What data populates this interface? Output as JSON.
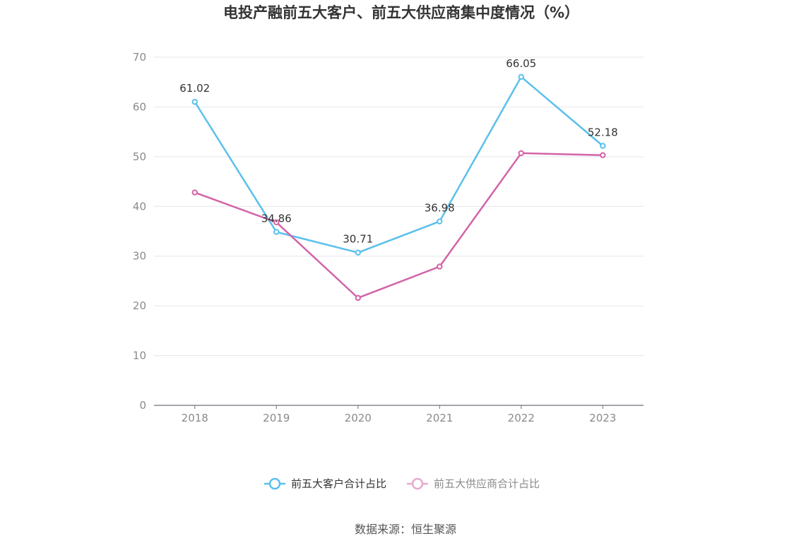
{
  "chart_data": {
    "type": "line",
    "title": "电投产融前五大客户、前五大供应商集中度情况（%）",
    "categories": [
      "2018",
      "2019",
      "2020",
      "2021",
      "2022",
      "2023"
    ],
    "series": [
      {
        "name": "前五大客户合计占比",
        "color": "#5bc0eb",
        "values": [
          61.02,
          34.86,
          30.71,
          36.98,
          66.05,
          52.18
        ],
        "labels": [
          "61.02",
          "34.86",
          "30.71",
          "36.98",
          "66.05",
          "52.18"
        ]
      },
      {
        "name": "前五大供应商合计占比",
        "color": "#d264a8",
        "values": [
          42.8,
          36.8,
          21.6,
          27.9,
          50.7,
          50.3
        ]
      }
    ],
    "yticks": [
      "0",
      "10",
      "20",
      "30",
      "40",
      "50",
      "60",
      "70"
    ],
    "ylim": [
      0,
      70
    ],
    "grid": true,
    "legend_position": "bottom-center"
  },
  "source": "数据来源：恒生聚源"
}
